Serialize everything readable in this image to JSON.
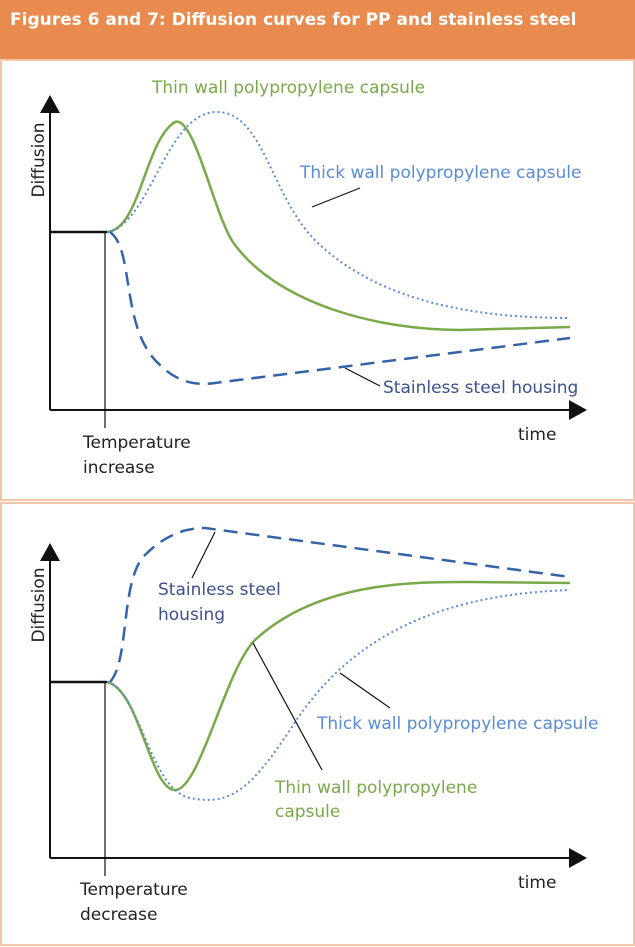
{
  "header": {
    "title": "Figures 6 and 7: Diffusion curves for PP and stainless steel"
  },
  "figures": [
    {
      "y_axis_label": "Diffusion",
      "x_axis_label": "time",
      "event_label": [
        "Temperature",
        "increase"
      ],
      "thin_wall_label": [
        "Thin wall polypropylene capsule"
      ],
      "thick_wall_label": [
        "Thick wall polypropylene capsule"
      ],
      "steel_label": [
        "Stainless steel housing"
      ]
    },
    {
      "y_axis_label": "Diffusion",
      "x_axis_label": "time",
      "event_label": [
        "Temperature",
        "decrease"
      ],
      "thin_wall_label": [
        "Thin wall polypropylene",
        "capsule"
      ],
      "thick_wall_label": [
        "Thick wall polypropylene capsule"
      ],
      "steel_label": [
        "Stainless steel",
        "housing"
      ]
    }
  ]
}
